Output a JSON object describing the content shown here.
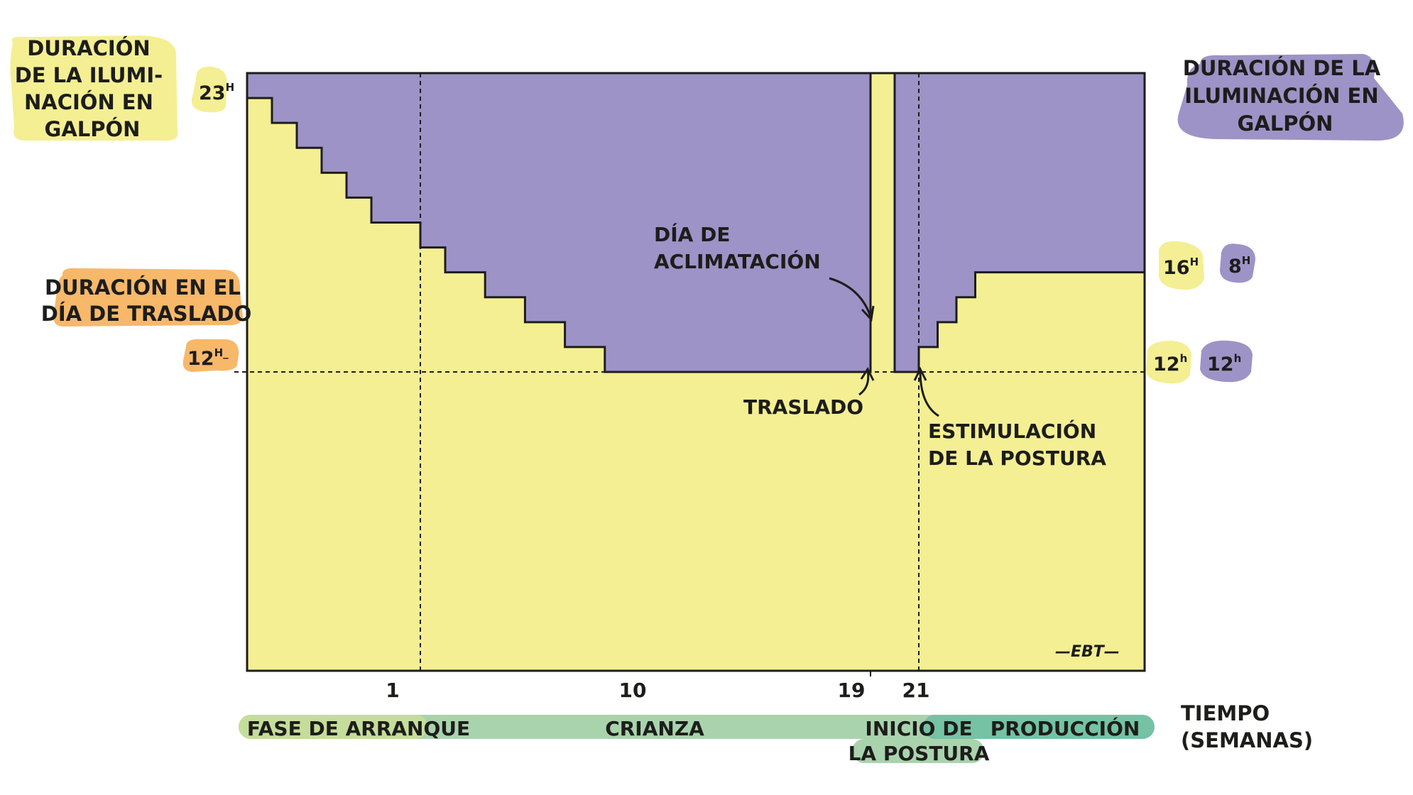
{
  "colors": {
    "yellow": "#f4ef93",
    "purple": "#9d93c7",
    "orange": "#f7b86a",
    "phase_light_green": "#c5dd9a",
    "phase_green": "#a9d3ad",
    "phase_teal": "#75c2a4",
    "ink": "#1d1d1b"
  },
  "labels": {
    "left_title": [
      "DURACIÓN",
      "DE LA ILUMI-",
      "NACIÓN EN",
      "GALPÓN"
    ],
    "right_title": [
      "DURACIÓN DE LA",
      "ILUMINACIÓN EN",
      "GALPÓN"
    ],
    "transfer_day_title": [
      "DURACIÓN EN EL",
      "DÍA DE TRASLADO"
    ],
    "acclimation": [
      "DÍA DE",
      "ACLIMATACIÓN"
    ],
    "transfer": "TRASLADO",
    "stimulation": [
      "ESTIMULACIÓN",
      "DE LA POSTURA"
    ],
    "time_axis": [
      "TIEMPO",
      "(SEMANAS)"
    ],
    "signature": "—EBT—",
    "hour_badges": {
      "left_23": {
        "num": "23",
        "sup": "H"
      },
      "left_12": {
        "num": "12",
        "sup": "H_"
      },
      "right_16": {
        "num": "16",
        "sup": "H"
      },
      "right_8": {
        "num": "8",
        "sup": "H"
      },
      "right_12_light": {
        "num": "12",
        "sup": "h"
      },
      "right_12_dark": {
        "num": "12",
        "sup": "h"
      }
    }
  },
  "chart_data": {
    "type": "area",
    "title": "",
    "xlabel": "TIEMPO (SEMANAS)",
    "ylabel": "DURACIÓN DE LA ILUMINACIÓN EN GALPÓN",
    "x_ticks": [
      "1",
      "10",
      "19",
      "21"
    ],
    "y_max_hours": 24,
    "reference_lines": {
      "y_hours": 12,
      "x_weeks": [
        "1",
        "21"
      ]
    },
    "series": [
      {
        "name": "DURACIÓN DE LA ILUMINACIÓN EN GALPÓN",
        "segments": [
          {
            "phase": "arranque",
            "light_hours": [
              23,
              22,
              21,
              20,
              19,
              18
            ]
          },
          {
            "phase": "crianza",
            "light_hours": [
              17,
              16,
              15,
              14,
              13,
              12
            ]
          },
          {
            "phase": "traslado",
            "light_hours": [
              24
            ]
          },
          {
            "phase": "inicio_produccion",
            "light_hours": [
              12,
              13,
              14,
              15,
              16
            ]
          }
        ]
      }
    ],
    "phases": [
      "FASE DE ARRANQUE",
      "CRIANZA",
      "INICIO DE LA POSTURA",
      "PRODUCCIÓN"
    ]
  }
}
